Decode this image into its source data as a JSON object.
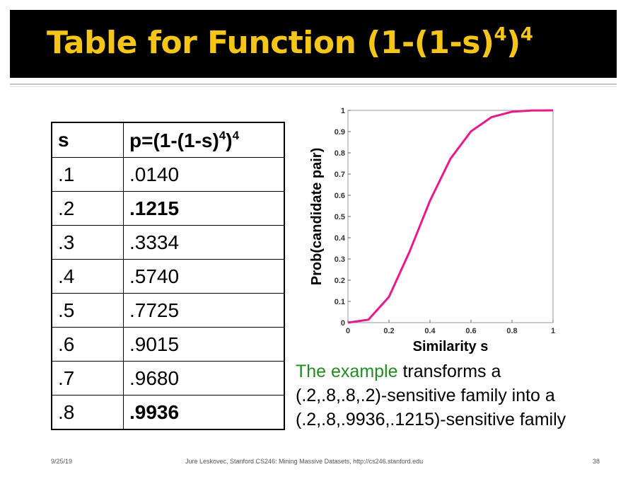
{
  "slide": {
    "title_main": "Table for Function (1-(1-s)",
    "title_exp1": "4",
    "title_close": ")",
    "title_exp2": "4"
  },
  "table": {
    "header_s": "s",
    "header_p_main": "p=(1-(1-s)",
    "header_p_exp1": "4",
    "header_p_close": ")",
    "header_p_exp2": "4",
    "rows": [
      {
        "s": ".1",
        "p": ".0140"
      },
      {
        "s": ".2",
        "p": ".1215"
      },
      {
        "s": ".3",
        "p": ".3334"
      },
      {
        "s": ".4",
        "p": ".5740"
      },
      {
        "s": ".5",
        "p": ".7725"
      },
      {
        "s": ".6",
        "p": ".9015"
      },
      {
        "s": ".7",
        "p": ".9680"
      },
      {
        "s": ".8",
        "p": ".9936"
      }
    ]
  },
  "chart_data": {
    "type": "line",
    "xlabel": "Similarity s",
    "ylabel": "Prob(candidate pair)",
    "xlim": [
      0,
      1
    ],
    "ylim": [
      0,
      1
    ],
    "xticks": [
      0,
      0.2,
      0.4,
      0.6,
      0.8,
      1
    ],
    "xtick_labels": [
      "0",
      "0.2",
      "0.4",
      "0.6",
      "0.8",
      "1"
    ],
    "yticks": [
      0,
      0.1,
      0.2,
      0.3,
      0.4,
      0.5,
      0.6,
      0.7,
      0.8,
      0.9,
      1
    ],
    "ytick_labels": [
      "0",
      "0.1",
      "0.2",
      "0.3",
      "0.4",
      "0.5",
      "0.6",
      "0.7",
      "0.8",
      "0.9",
      "1"
    ],
    "line_color": "#e8198b",
    "series": [
      {
        "x": [
          0,
          0.1,
          0.2,
          0.3,
          0.4,
          0.5,
          0.6,
          0.7,
          0.8,
          0.9,
          1.0
        ],
        "y": [
          0,
          0.014,
          0.1215,
          0.3334,
          0.574,
          0.7725,
          0.9015,
          0.968,
          0.9936,
          0.9997,
          1.0
        ]
      }
    ]
  },
  "caption": {
    "highlight": "The example",
    "line1_rest": " transforms a",
    "line2": "(.2,.8,.8,.2)-sensitive family into a",
    "line3": "(.2,.8,.9936,.1215)-sensitive family"
  },
  "footer": {
    "date": "9/25/19",
    "credit": "Jure Leskovec, Stanford CS246: Mining Massive Datasets, http://cs246.stanford.edu",
    "page": "38"
  },
  "colors": {
    "title": "#f5c518",
    "title_bg": "#000000",
    "highlight": "#228b22"
  }
}
